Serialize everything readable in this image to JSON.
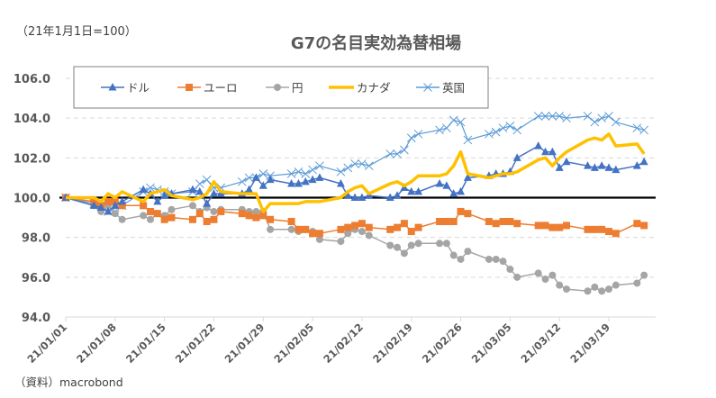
{
  "base_note": "（21年1月1日=100）",
  "title": "G7の名目実効為替相場",
  "source": "（資料）macrobond",
  "chart_data": {
    "type": "line",
    "title": "G7の名目実効為替相場",
    "subtitle": "（21年1月1日=100）",
    "xlabel": "",
    "ylabel": "",
    "ylim": [
      94.0,
      106.0
    ],
    "yticks": [
      "94.0",
      "96.0",
      "98.0",
      "100.0",
      "102.0",
      "104.0",
      "106.0"
    ],
    "ytick_values": [
      94,
      96,
      98,
      100,
      102,
      104,
      106
    ],
    "xticks": [
      "21/01/01",
      "21/01/08",
      "21/01/15",
      "21/01/22",
      "21/01/29",
      "21/02/05",
      "21/02/12",
      "21/02/19",
      "21/02/26",
      "21/03/05",
      "21/03/12",
      "21/03/19"
    ],
    "xtick_days": [
      0,
      7,
      14,
      21,
      28,
      35,
      42,
      49,
      56,
      63,
      70,
      77
    ],
    "grid": true,
    "reference_line": 100.0,
    "legend_position": "top",
    "x_days": [
      0,
      4,
      5,
      6,
      7,
      8,
      11,
      12,
      13,
      14,
      15,
      18,
      19,
      20,
      21,
      22,
      25,
      26,
      27,
      28,
      29,
      32,
      33,
      34,
      35,
      36,
      39,
      40,
      41,
      42,
      43,
      46,
      47,
      48,
      49,
      50,
      53,
      54,
      55,
      56,
      57,
      60,
      61,
      62,
      63,
      64,
      67,
      68,
      69,
      70,
      71,
      74,
      75,
      76,
      77,
      78,
      81,
      82
    ],
    "series": [
      {
        "name": "ドル",
        "color": "#4472C4",
        "marker": "triangle",
        "values": [
          100.0,
          99.6,
          99.5,
          99.3,
          99.6,
          99.8,
          100.4,
          100.2,
          99.8,
          100.1,
          100.2,
          100.4,
          100.3,
          99.7,
          100.2,
          100.2,
          100.2,
          100.4,
          101.0,
          100.6,
          100.9,
          100.7,
          100.7,
          100.8,
          100.9,
          101.0,
          100.7,
          100.1,
          100.0,
          100.0,
          100.1,
          100.0,
          100.1,
          100.5,
          100.3,
          100.3,
          100.7,
          100.6,
          100.2,
          100.3,
          101.0,
          101.1,
          101.2,
          101.2,
          101.3,
          102.0,
          102.6,
          102.3,
          102.3,
          101.5,
          101.8,
          101.6,
          101.5,
          101.6,
          101.5,
          101.4,
          101.6,
          101.8
        ]
      },
      {
        "name": "ユーロ",
        "color": "#ED7D31",
        "marker": "square",
        "values": [
          100.0,
          99.8,
          99.6,
          99.8,
          99.8,
          99.6,
          99.6,
          99.3,
          99.2,
          98.9,
          99.0,
          98.9,
          99.2,
          98.8,
          98.9,
          99.3,
          99.2,
          99.1,
          99.0,
          99.1,
          98.9,
          98.8,
          98.4,
          98.4,
          98.2,
          98.2,
          98.4,
          98.5,
          98.6,
          98.7,
          98.5,
          98.4,
          98.5,
          98.7,
          98.3,
          98.5,
          98.8,
          98.8,
          98.8,
          99.3,
          99.2,
          98.8,
          98.7,
          98.8,
          98.8,
          98.7,
          98.6,
          98.6,
          98.5,
          98.5,
          98.6,
          98.4,
          98.4,
          98.4,
          98.3,
          98.2,
          98.7,
          98.6
        ]
      },
      {
        "name": "円",
        "color": "#A5A5A5",
        "marker": "circle",
        "values": [
          100.0,
          99.6,
          99.3,
          99.6,
          99.2,
          98.9,
          99.1,
          98.9,
          99.2,
          99.1,
          99.4,
          99.6,
          99.3,
          99.5,
          99.3,
          99.4,
          99.4,
          99.3,
          99.3,
          99.3,
          98.4,
          98.4,
          98.3,
          98.4,
          98.3,
          97.9,
          97.8,
          98.2,
          98.4,
          98.3,
          98.1,
          97.6,
          97.5,
          97.2,
          97.6,
          97.7,
          97.7,
          97.7,
          97.1,
          96.9,
          97.3,
          96.9,
          96.9,
          96.8,
          96.4,
          96.0,
          96.2,
          95.9,
          96.1,
          95.6,
          95.4,
          95.3,
          95.5,
          95.3,
          95.4,
          95.6,
          95.7,
          96.1
        ]
      },
      {
        "name": "カナダ",
        "color": "#FFC000",
        "marker": "none",
        "values": [
          100.0,
          100.0,
          99.8,
          100.2,
          100.0,
          100.3,
          99.8,
          100.2,
          100.3,
          100.4,
          100.1,
          99.9,
          100.0,
          100.2,
          100.8,
          100.3,
          100.2,
          100.2,
          100.2,
          99.3,
          99.7,
          99.7,
          99.7,
          99.8,
          99.8,
          99.8,
          100.0,
          100.3,
          100.5,
          100.6,
          100.2,
          100.7,
          100.8,
          100.6,
          100.8,
          101.1,
          101.1,
          101.2,
          101.6,
          102.3,
          101.2,
          101.0,
          101.1,
          101.2,
          101.2,
          101.3,
          101.9,
          102.0,
          101.6,
          102.0,
          102.3,
          102.9,
          103.0,
          102.9,
          103.2,
          102.6,
          102.7,
          102.2
        ]
      },
      {
        "name": "英国",
        "color": "#5B9BD5",
        "marker": "x",
        "values": [
          100.0,
          99.7,
          99.6,
          99.3,
          99.5,
          99.6,
          100.3,
          100.5,
          100.4,
          100.3,
          100.2,
          100.3,
          100.7,
          100.9,
          100.5,
          100.5,
          100.8,
          101.0,
          101.0,
          101.2,
          101.1,
          101.2,
          101.3,
          101.2,
          101.4,
          101.6,
          101.3,
          101.5,
          101.7,
          101.7,
          101.6,
          102.2,
          102.2,
          102.4,
          103.0,
          103.2,
          103.4,
          103.5,
          103.9,
          103.8,
          102.9,
          103.2,
          103.3,
          103.5,
          103.6,
          103.4,
          104.1,
          104.1,
          104.1,
          104.1,
          104.0,
          104.1,
          103.8,
          104.0,
          104.1,
          103.8,
          103.5,
          103.4
        ]
      }
    ]
  }
}
